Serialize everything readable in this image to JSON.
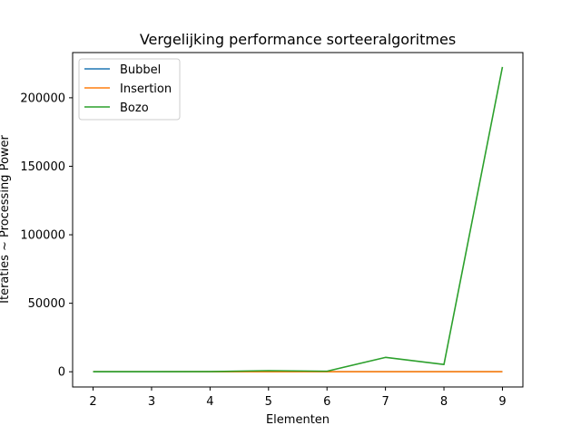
{
  "chart_data": {
    "type": "line",
    "title": "Vergelijking performance sorteeralgoritmes",
    "xlabel": "Elementen",
    "ylabel": "Iteraties ~ Processing Power",
    "x": [
      2,
      3,
      4,
      5,
      6,
      7,
      8,
      9
    ],
    "xlim": [
      1.65,
      9.35
    ],
    "ylim": [
      -11100,
      233000
    ],
    "xticks": [
      2,
      3,
      4,
      5,
      6,
      7,
      8,
      9
    ],
    "yticks": [
      0,
      50000,
      100000,
      150000,
      200000
    ],
    "grid": false,
    "legend_position": "top-left",
    "series": [
      {
        "name": "Bubbel",
        "color": "#1f77b4",
        "values": [
          1,
          3,
          6,
          10,
          15,
          21,
          28,
          36
        ]
      },
      {
        "name": "Insertion",
        "color": "#ff7f0e",
        "values": [
          1,
          2,
          4,
          7,
          9,
          12,
          16,
          20
        ]
      },
      {
        "name": "Bozo",
        "color": "#2ca02c",
        "values": [
          2,
          20,
          90,
          800,
          400,
          10500,
          5300,
          222500
        ]
      }
    ]
  }
}
